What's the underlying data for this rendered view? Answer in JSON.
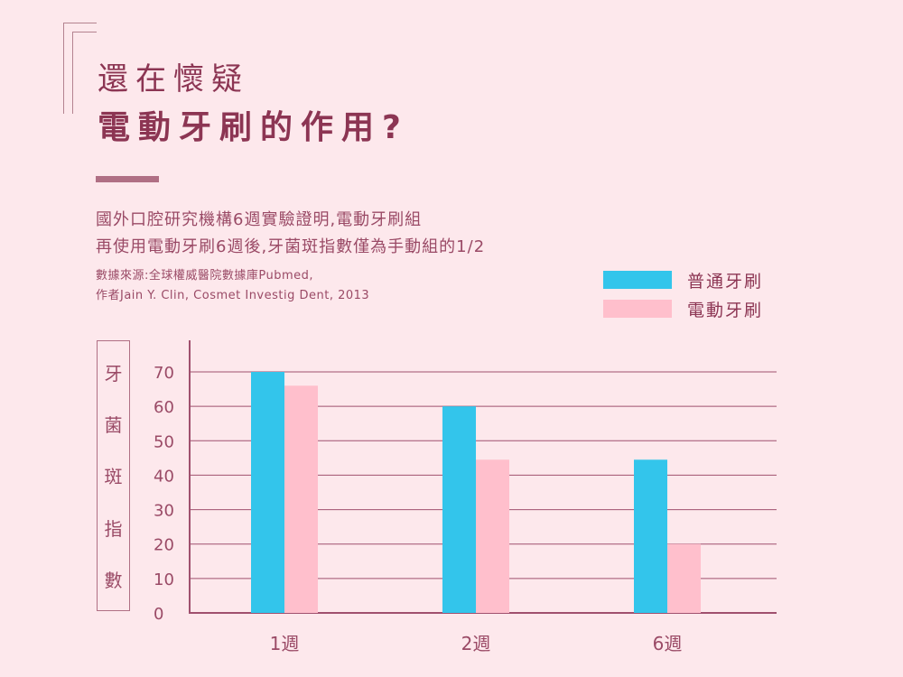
{
  "header": {
    "title_line1": "還在懷疑",
    "title_line2": "電動牙刷的作用?",
    "description_line1": "國外口腔研究機構6週實驗證明,電動牙刷組",
    "description_line2": "再使用電動牙刷6週後,牙菌斑指數僅為手動組的1/2",
    "source_line1": "數據來源:全球權威醫院數據庫Pubmed,",
    "source_line2": "作者Jain Y. Clin, Cosmet Investig Dent, 2013"
  },
  "ylabel_chars": [
    "牙",
    "菌",
    "斑",
    "指",
    "數"
  ],
  "colors": {
    "background": "#fde8ec",
    "accent": "#8c3553",
    "axis": "#a0506e",
    "series_manual": "#33c5eb",
    "series_electric": "#ffbfcc"
  },
  "chart_data": {
    "type": "bar",
    "categories": [
      "1週",
      "2週",
      "6週"
    ],
    "series": [
      {
        "name": "普通牙刷",
        "values": [
          70,
          60,
          44.5
        ],
        "color": "#33c5eb"
      },
      {
        "name": "電動牙刷",
        "values": [
          66,
          44.5,
          20
        ],
        "color": "#ffbfcc"
      }
    ],
    "ylabel": "牙菌斑指數",
    "ylim": [
      0,
      70
    ],
    "yticks": [
      0,
      10,
      20,
      30,
      40,
      50,
      60,
      70
    ],
    "grid": true,
    "legend": "top-right"
  }
}
